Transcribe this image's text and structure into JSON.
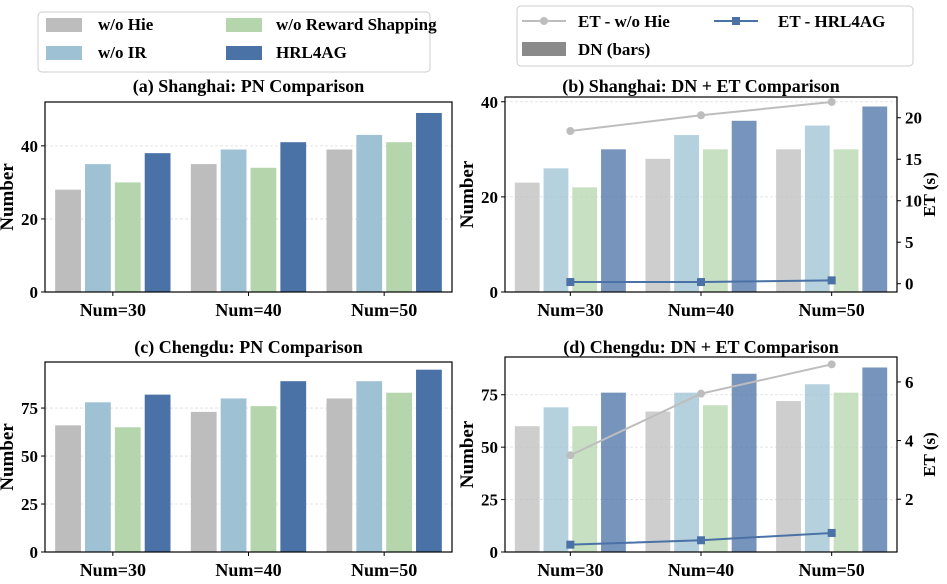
{
  "figure": {
    "legend_left": {
      "items": [
        {
          "label": "w/o Hie",
          "color": "#bdbdbd"
        },
        {
          "label": "w/o Reward Shapping",
          "color": "#b5d6ad"
        },
        {
          "label": "w/o IR",
          "color": "#9ec2d3"
        },
        {
          "label": "HRL4AG",
          "color": "#4a72a6"
        }
      ]
    },
    "legend_right": {
      "items": [
        {
          "label": "ET - w/o Hie",
          "color": "#bdbdbd",
          "kind": "line-circle"
        },
        {
          "label": "ET - HRL4AG",
          "color": "#4a72a6",
          "kind": "line-square"
        },
        {
          "label": "DN (bars)",
          "color": "#8a8a8a",
          "kind": "patch"
        }
      ]
    }
  },
  "chart_data": [
    {
      "id": "a",
      "type": "bar",
      "title": "(a) Shanghai: PN Comparison",
      "ylabel": "Number",
      "categories": [
        "Num=30",
        "Num=40",
        "Num=50"
      ],
      "ylim": [
        0,
        52
      ],
      "yticks": [
        0,
        20,
        40
      ],
      "grid": true,
      "bar_alpha": 1.0,
      "series": [
        {
          "name": "w/o Hie",
          "color": "#bdbdbd",
          "values": [
            28,
            35,
            39
          ]
        },
        {
          "name": "w/o IR",
          "color": "#9ec2d3",
          "values": [
            35,
            39,
            43
          ]
        },
        {
          "name": "w/o Reward Shapping",
          "color": "#b5d6ad",
          "values": [
            30,
            34,
            41
          ]
        },
        {
          "name": "HRL4AG",
          "color": "#4a72a6",
          "values": [
            38,
            41,
            49
          ]
        }
      ]
    },
    {
      "id": "b",
      "type": "bar",
      "title": "(b) Shanghai: DN + ET Comparison",
      "ylabel": "Number",
      "y2label": "ET (s)",
      "categories": [
        "Num=30",
        "Num=40",
        "Num=50"
      ],
      "ylim": [
        0,
        41
      ],
      "yticks": [
        0,
        20,
        40
      ],
      "y2lim": [
        -1,
        22.5
      ],
      "y2ticks": [
        0,
        5,
        10,
        15,
        20
      ],
      "grid": true,
      "bar_alpha": 0.75,
      "series": [
        {
          "name": "w/o Hie",
          "color": "#bdbdbd",
          "values": [
            23,
            28,
            30
          ]
        },
        {
          "name": "w/o IR",
          "color": "#9ec2d3",
          "values": [
            26,
            33,
            35
          ]
        },
        {
          "name": "w/o Reward Shapping",
          "color": "#b5d6ad",
          "values": [
            22,
            30,
            30
          ]
        },
        {
          "name": "HRL4AG",
          "color": "#4a72a6",
          "values": [
            30,
            36,
            39
          ]
        }
      ],
      "lines": [
        {
          "name": "ET - w/o Hie",
          "color": "#bdbdbd",
          "marker": "circle",
          "values": [
            18.4,
            20.3,
            21.9
          ]
        },
        {
          "name": "ET - HRL4AG",
          "color": "#4a72a6",
          "marker": "square",
          "values": [
            0.2,
            0.2,
            0.4
          ]
        }
      ]
    },
    {
      "id": "c",
      "type": "bar",
      "title": "(c) Chengdu: PN Comparison",
      "ylabel": "Number",
      "categories": [
        "Num=30",
        "Num=40",
        "Num=50"
      ],
      "ylim": [
        0,
        99
      ],
      "yticks": [
        0,
        25,
        50,
        75
      ],
      "grid": true,
      "bar_alpha": 1.0,
      "series": [
        {
          "name": "w/o Hie",
          "color": "#bdbdbd",
          "values": [
            66,
            73,
            80
          ]
        },
        {
          "name": "w/o IR",
          "color": "#9ec2d3",
          "values": [
            78,
            80,
            89
          ]
        },
        {
          "name": "w/o Reward Shapping",
          "color": "#b5d6ad",
          "values": [
            65,
            76,
            83
          ]
        },
        {
          "name": "HRL4AG",
          "color": "#4a72a6",
          "values": [
            82,
            89,
            95
          ]
        }
      ]
    },
    {
      "id": "d",
      "type": "bar",
      "title": "(d) Chengdu: DN + ET Comparison",
      "ylabel": "Number",
      "y2label": "ET (s)",
      "categories": [
        "Num=30",
        "Num=40",
        "Num=50"
      ],
      "ylim": [
        0,
        93
      ],
      "yticks": [
        0,
        25,
        50,
        75
      ],
      "y2lim": [
        0.2,
        6.85
      ],
      "y2ticks": [
        2,
        4,
        6
      ],
      "grid": true,
      "bar_alpha": 0.75,
      "series": [
        {
          "name": "w/o Hie",
          "color": "#bdbdbd",
          "values": [
            60,
            67,
            72
          ]
        },
        {
          "name": "w/o IR",
          "color": "#9ec2d3",
          "values": [
            69,
            76,
            80
          ]
        },
        {
          "name": "w/o Reward Shapping",
          "color": "#b5d6ad",
          "values": [
            60,
            70,
            76
          ]
        },
        {
          "name": "HRL4AG",
          "color": "#4a72a6",
          "values": [
            76,
            85,
            88
          ]
        }
      ],
      "lines": [
        {
          "name": "ET - w/o Hie",
          "color": "#bdbdbd",
          "marker": "circle",
          "values": [
            3.5,
            5.6,
            6.6
          ]
        },
        {
          "name": "ET - HRL4AG",
          "color": "#4a72a6",
          "marker": "square",
          "values": [
            0.45,
            0.6,
            0.85
          ]
        }
      ]
    }
  ]
}
